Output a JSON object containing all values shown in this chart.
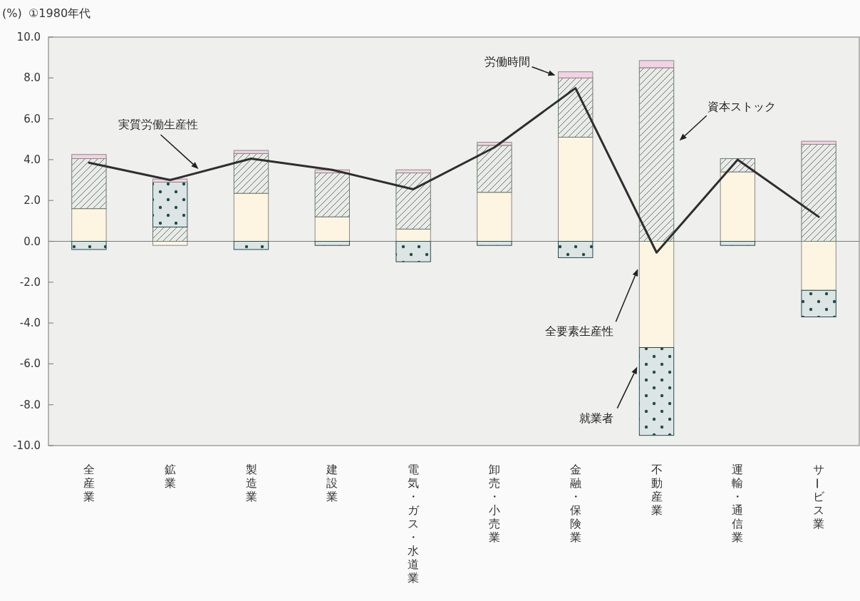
{
  "chart_data": {
    "type": "bar",
    "title": "①1980年代",
    "ylabel": "(%)",
    "categories": [
      "全産業",
      "鉱業",
      "製造業",
      "建設業",
      "電気・ガス・水道業",
      "卸売・小売業",
      "金融・保険業",
      "不動産業",
      "運輸・通信業",
      "サービス業"
    ],
    "stacked": true,
    "series": [
      {
        "name": "全要素生産性",
        "color": "#fdf5e1",
        "values": [
          1.6,
          -0.2,
          2.35,
          1.2,
          0.6,
          2.4,
          5.1,
          -5.2,
          3.4,
          -2.4
        ]
      },
      {
        "name": "資本ストック",
        "color": "#6a7a6a",
        "values": [
          2.45,
          0.7,
          1.95,
          2.15,
          2.75,
          2.3,
          2.9,
          8.5,
          0.65,
          4.75
        ]
      },
      {
        "name": "就業者",
        "color": "#1f4d4d",
        "values": [
          -0.4,
          2.2,
          -0.4,
          -0.2,
          -1.0,
          -0.2,
          -0.8,
          -4.3,
          -0.2,
          -1.3
        ]
      },
      {
        "name": "労働時間",
        "color": "#f3d3e3",
        "values": [
          0.2,
          0.15,
          0.15,
          0.15,
          0.15,
          0.15,
          0.3,
          0.35,
          null,
          0.15
        ]
      },
      {
        "name": "実質労働生産性",
        "type": "line",
        "color": "#2e2e2e",
        "values": [
          3.85,
          3.0,
          4.05,
          3.5,
          2.55,
          4.6,
          7.5,
          -0.55,
          4.0,
          1.2
        ]
      }
    ],
    "ylim": [
      -10,
      10
    ],
    "yticks": [
      {
        "value": 10,
        "label": "10.0"
      },
      {
        "value": 8,
        "label": "8.0"
      },
      {
        "value": 6,
        "label": "6.0"
      },
      {
        "value": 4,
        "label": "4.0"
      },
      {
        "value": 2,
        "label": "2.0"
      },
      {
        "value": 0,
        "label": "0.0"
      },
      {
        "value": -2,
        "label": "-2.0"
      },
      {
        "value": -4,
        "label": "-4.0"
      },
      {
        "value": -6,
        "label": "-6.0"
      },
      {
        "value": -8,
        "label": "-8.0"
      },
      {
        "value": -10,
        "label": "-10.0"
      }
    ]
  }
}
